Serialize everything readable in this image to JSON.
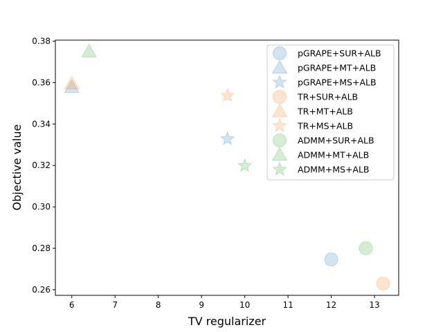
{
  "chart_data": {
    "type": "scatter",
    "title": "",
    "xlabel": "TV regularizer",
    "ylabel": "Objective value",
    "xlim": [
      5.62,
      13.56
    ],
    "ylim": [
      0.2573,
      0.3805
    ],
    "xticks": [
      6,
      7,
      8,
      9,
      10,
      11,
      12,
      13
    ],
    "yticks": [
      0.26,
      0.28,
      0.3,
      0.32,
      0.34,
      0.36,
      0.38
    ],
    "ytick_labels": [
      "0.26",
      "0.28",
      "0.30",
      "0.32",
      "0.34",
      "0.36",
      "0.38"
    ],
    "grid": false,
    "legend_position": "top-right",
    "series": [
      {
        "name": "pGRAPE+SUR+ALB",
        "marker": "circle",
        "color": "#1f77b4",
        "points": [
          {
            "x": 12.0,
            "y": 0.2746
          }
        ]
      },
      {
        "name": "pGRAPE+MT+ALB",
        "marker": "triangle",
        "color": "#1f77b4",
        "points": [
          {
            "x": 6.0,
            "y": 0.3578
          }
        ]
      },
      {
        "name": "pGRAPE+MS+ALB",
        "marker": "star",
        "color": "#1f77b4",
        "points": [
          {
            "x": 9.6,
            "y": 0.3328
          }
        ]
      },
      {
        "name": "TR+SUR+ALB",
        "marker": "circle",
        "color": "#ff7f0e",
        "points": [
          {
            "x": 13.2,
            "y": 0.263
          }
        ]
      },
      {
        "name": "TR+MT+ALB",
        "marker": "triangle",
        "color": "#ff7f0e",
        "points": [
          {
            "x": 6.0,
            "y": 0.3595
          }
        ]
      },
      {
        "name": "TR+MS+ALB",
        "marker": "star",
        "color": "#ff7f0e",
        "points": [
          {
            "x": 9.6,
            "y": 0.3537
          }
        ]
      },
      {
        "name": "ADMM+SUR+ALB",
        "marker": "circle",
        "color": "#2ca02c",
        "points": [
          {
            "x": 12.8,
            "y": 0.28
          }
        ]
      },
      {
        "name": "ADMM+MT+ALB",
        "marker": "triangle",
        "color": "#2ca02c",
        "points": [
          {
            "x": 6.4,
            "y": 0.375
          }
        ]
      },
      {
        "name": "ADMM+MS+ALB",
        "marker": "star",
        "color": "#2ca02c",
        "points": [
          {
            "x": 10.0,
            "y": 0.3198
          }
        ]
      }
    ]
  }
}
